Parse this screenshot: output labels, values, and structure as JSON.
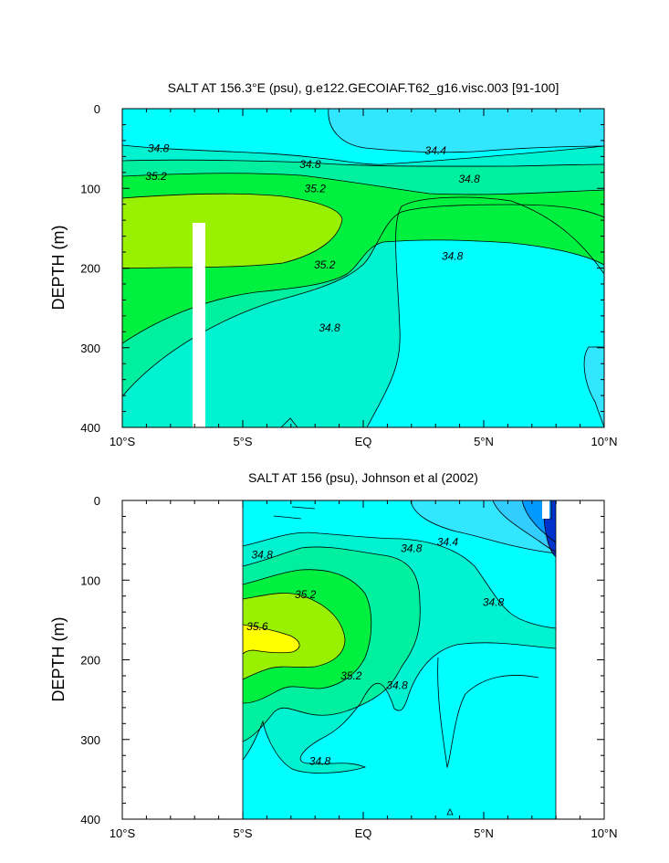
{
  "colors": {
    "s344": "#33e6ff",
    "s346": "#00ffff",
    "s348": "#00f2d0",
    "s350": "#00f0a0",
    "s352": "#00f040",
    "s354": "#99f000",
    "s356": "#ffff00",
    "low": "#33ccff",
    "lower": "#0099ff",
    "lowest": "#0033cc"
  },
  "chart_data": [
    {
      "type": "contour",
      "title": "SALT AT 156.3°E (psu), g.e122.GECOIAF.T62_g16.visc.003 [91-100]",
      "xlabel": "",
      "ylabel": "DEPTH (m)",
      "xlim": [
        -10,
        10
      ],
      "ylim": [
        400,
        0
      ],
      "x_ticks": [
        -10,
        -5,
        0,
        5,
        10
      ],
      "x_tick_labels": [
        "10°S",
        "5°S",
        "EQ",
        "5°N",
        "10°N"
      ],
      "y_ticks": [
        0,
        100,
        200,
        300,
        400
      ],
      "y_tick_labels": [
        "0",
        "100",
        "200",
        "300",
        "400"
      ],
      "contour_labels": [
        {
          "text": "34.8",
          "lat": -8.5,
          "depth": 50
        },
        {
          "text": "34.8",
          "lat": -2.2,
          "depth": 70
        },
        {
          "text": "34.4",
          "lat": 3.0,
          "depth": 53
        },
        {
          "text": "34.8",
          "lat": 4.4,
          "depth": 88
        },
        {
          "text": "35.2",
          "lat": -8.6,
          "depth": 85
        },
        {
          "text": "35.2",
          "lat": -2.0,
          "depth": 100
        },
        {
          "text": "35.2",
          "lat": -1.6,
          "depth": 196
        },
        {
          "text": "34.8",
          "lat": 3.7,
          "depth": 185
        },
        {
          "text": "34.8",
          "lat": -1.4,
          "depth": 275
        }
      ]
    },
    {
      "type": "contour",
      "title": "SALT AT 156 (psu), Johnson et al (2002)",
      "xlabel": "",
      "ylabel": "DEPTH (m)",
      "xlim": [
        -10,
        10
      ],
      "ylim": [
        400,
        0
      ],
      "data_lat_range": [
        -5,
        8
      ],
      "x_ticks": [
        -10,
        -5,
        0,
        5,
        10
      ],
      "x_tick_labels": [
        "10°S",
        "5°S",
        "EQ",
        "5°N",
        "10°N"
      ],
      "y_ticks": [
        0,
        100,
        200,
        300,
        400
      ],
      "y_tick_labels": [
        "0",
        "100",
        "200",
        "300",
        "400"
      ],
      "contour_labels": [
        {
          "text": "34.8",
          "lat": -4.2,
          "depth": 68
        },
        {
          "text": "34.8",
          "lat": 2.0,
          "depth": 60
        },
        {
          "text": "34.4",
          "lat": 3.5,
          "depth": 52
        },
        {
          "text": "34.8",
          "lat": 5.4,
          "depth": 128
        },
        {
          "text": "35.2",
          "lat": -2.4,
          "depth": 118
        },
        {
          "text": "35.6",
          "lat": -4.4,
          "depth": 158
        },
        {
          "text": "35.2",
          "lat": -0.5,
          "depth": 220
        },
        {
          "text": "34.8",
          "lat": 1.4,
          "depth": 232
        },
        {
          "text": "34.8",
          "lat": -1.8,
          "depth": 327
        }
      ]
    }
  ]
}
